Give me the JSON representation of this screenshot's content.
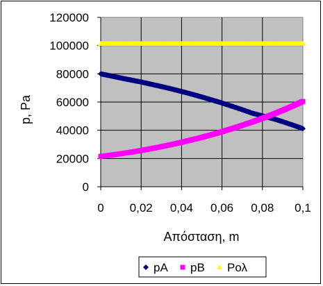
{
  "chart_data": {
    "type": "scatter",
    "xlabel": "Απόσταση, m",
    "ylabel": "p, Pa",
    "xlim": [
      0,
      0.1
    ],
    "ylim": [
      0,
      120000
    ],
    "x_ticks": [
      "0",
      "0,02",
      "0,04",
      "0,06",
      "0,08",
      "0,1"
    ],
    "y_ticks": [
      "0",
      "20000",
      "40000",
      "60000",
      "80000",
      "100000",
      "120000"
    ],
    "grid": true,
    "plot_background": "#c0c0c0",
    "legend_position": "bottom",
    "x": [
      0,
      0.005,
      0.01,
      0.015,
      0.02,
      0.025,
      0.03,
      0.035,
      0.04,
      0.045,
      0.05,
      0.055,
      0.06,
      0.065,
      0.07,
      0.075,
      0.08,
      0.085,
      0.09,
      0.095,
      0.1
    ],
    "series": [
      {
        "name": "pA",
        "color": "#000080",
        "marker": "diamond",
        "values": [
          80000,
          78500,
          77000,
          75600,
          74200,
          72600,
          71000,
          69300,
          67500,
          65600,
          63600,
          61500,
          59300,
          57000,
          54600,
          52100,
          50200,
          48300,
          46100,
          43700,
          41200
        ]
      },
      {
        "name": "pB",
        "color": "#ff00ff",
        "marker": "square",
        "values": [
          21500,
          22400,
          23400,
          24500,
          25700,
          27000,
          28400,
          29900,
          31500,
          33200,
          35000,
          36900,
          39000,
          41200,
          43500,
          45900,
          48500,
          51200,
          54100,
          57200,
          60500
        ]
      },
      {
        "name": "Ρολ",
        "color": "#ffff00",
        "marker": "triangle",
        "values": [
          101300,
          101300,
          101300,
          101300,
          101300,
          101300,
          101300,
          101300,
          101300,
          101300,
          101300,
          101300,
          101300,
          101300,
          101300,
          101300,
          101300,
          101300,
          101300,
          101300,
          101300
        ]
      }
    ]
  }
}
